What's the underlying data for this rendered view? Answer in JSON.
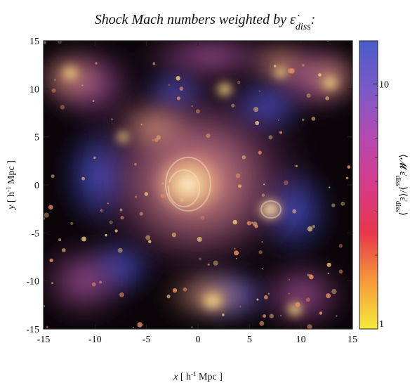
{
  "chart_data": {
    "type": "heatmap",
    "title_main": "Shock Mach numbers weighted by ",
    "title_sym": "ε̇",
    "title_sub": "diss",
    "title_end": ":",
    "xlabel_var": "x",
    "xlabel_unit_a": " [ h",
    "xlabel_unit_exp": "-1",
    "xlabel_unit_b": " Mpc ]",
    "ylabel_var": "y",
    "ylabel_unit_a": " [ h",
    "ylabel_unit_exp": "-1",
    "ylabel_unit_b": " Mpc ]",
    "xlim": [
      -15,
      15
    ],
    "ylim": [
      -15,
      15
    ],
    "x_ticks": [
      "-15",
      "-10",
      "-5",
      "0",
      "5",
      "10",
      "15"
    ],
    "y_ticks": [
      "15",
      "10",
      "5",
      "0",
      "-5",
      "-10",
      "-15"
    ],
    "colorbar": {
      "label_pre": "⟨𝓜 ε̇",
      "label_sub1": "diss",
      "label_mid": "⟩/⟨ε̇",
      "label_sub2": "diss",
      "label_post": "⟩",
      "scale": "log",
      "range": [
        1,
        15
      ],
      "tick_labels": [
        "10",
        "1"
      ],
      "tick_values": [
        10,
        1
      ],
      "colors": [
        "#f5ea3c",
        "#f59a3a",
        "#e8364a",
        "#d63a8a",
        "#b44ab0",
        "#7a5ac8",
        "#4a5cc8"
      ]
    },
    "colors": {
      "background": "#0a0508",
      "cluster_core": "#f4e4b0",
      "warm": "#e8a070",
      "magenta": "#b85ab8",
      "blue": "#4a5ad8"
    }
  }
}
